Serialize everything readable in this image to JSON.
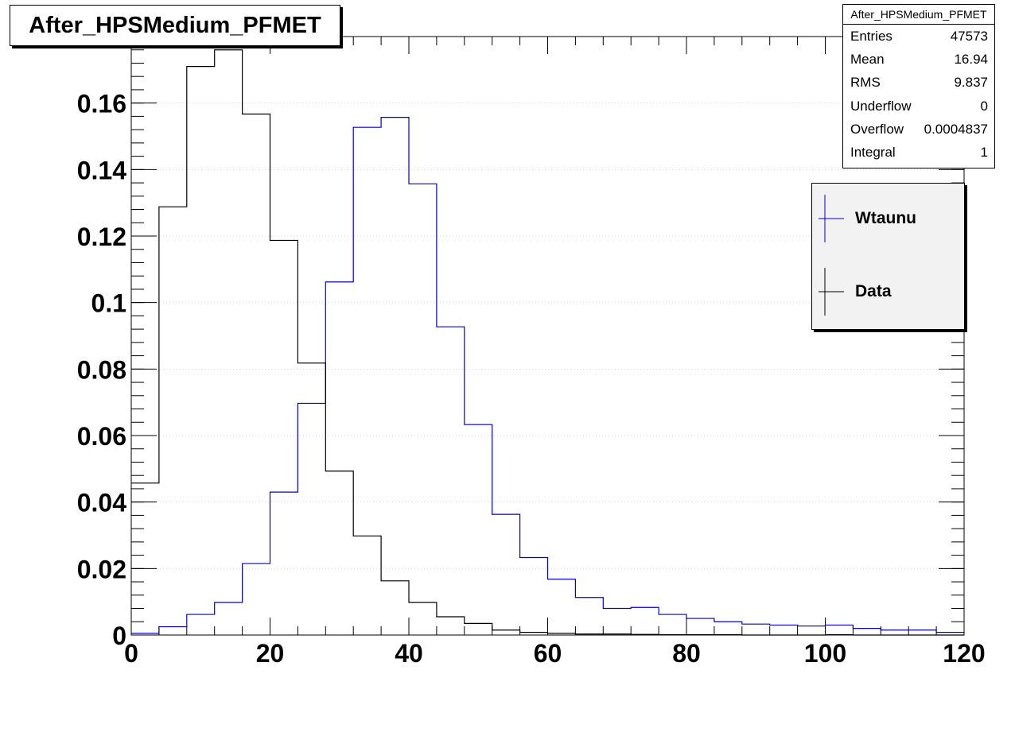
{
  "chart_data": {
    "type": "histogram",
    "title": "After_HPSMedium_PFMET",
    "xlabel": "",
    "ylabel": "",
    "xlim": [
      0,
      120
    ],
    "ylim": [
      0,
      0.18
    ],
    "bin_width": 4,
    "x_ticks": [
      "0",
      "20",
      "40",
      "60",
      "80",
      "100",
      "120"
    ],
    "y_ticks": [
      "0",
      "0.02",
      "0.04",
      "0.06",
      "0.08",
      "0.1",
      "0.12",
      "0.14",
      "0.16",
      "0.18"
    ],
    "grid": "horizontal dotted",
    "bin_edges": [
      0,
      4,
      8,
      12,
      16,
      20,
      24,
      28,
      32,
      36,
      40,
      44,
      48,
      52,
      56,
      60,
      64,
      68,
      72,
      76,
      80,
      84,
      88,
      92,
      96,
      100,
      104,
      108,
      112,
      116,
      120
    ],
    "series": [
      {
        "name": "Wtaunu",
        "color": "#0000cc",
        "values": [
          0.0005,
          0.0025,
          0.0062,
          0.0098,
          0.0215,
          0.043,
          0.0697,
          0.1062,
          0.1527,
          0.1557,
          0.1357,
          0.0927,
          0.0633,
          0.0363,
          0.0233,
          0.0168,
          0.0113,
          0.008,
          0.0083,
          0.0062,
          0.005,
          0.004,
          0.0033,
          0.003,
          0.0027,
          0.003,
          0.002,
          0.0015,
          0.0015,
          0.0008
        ]
      },
      {
        "name": "Data",
        "color": "#000000",
        "values": [
          0.0457,
          0.1288,
          0.171,
          0.176,
          0.1567,
          0.1187,
          0.0818,
          0.0493,
          0.0298,
          0.0163,
          0.0098,
          0.0055,
          0.0035,
          0.0015,
          0.0008,
          0.0005,
          0.0003,
          0.0003,
          0.0002,
          0.0001,
          0.0001,
          0.0001,
          0.0,
          0.0,
          0.0,
          0.0001,
          0.0,
          0.0,
          0.0,
          0.0
        ]
      }
    ],
    "legend": {
      "placement": "top-right",
      "entries": [
        "Wtaunu",
        "Data"
      ]
    },
    "stats_box": {
      "title": "After_HPSMedium_PFMET",
      "rows": [
        {
          "label": "Entries",
          "value": "47573"
        },
        {
          "label": "Mean",
          "value": "16.94"
        },
        {
          "label": "RMS",
          "value": "9.837"
        },
        {
          "label": "Underflow",
          "value": "0"
        },
        {
          "label": "Overflow",
          "value": "0.0004837"
        },
        {
          "label": "Integral",
          "value": "1"
        }
      ]
    }
  }
}
